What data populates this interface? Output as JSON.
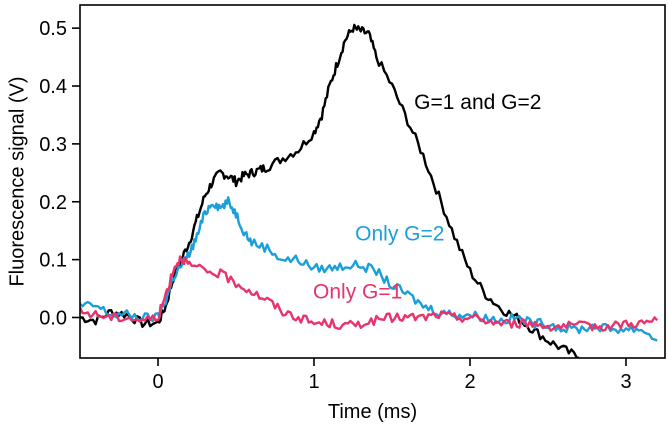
{
  "chart_data": {
    "type": "line",
    "xlabel": "Time (ms)",
    "ylabel": "Fluorescence signal (V)",
    "xlim": [
      -0.5,
      3.25
    ],
    "ylim": [
      -0.07,
      0.54
    ],
    "xticks": [
      0,
      1,
      2,
      3
    ],
    "xtick_labels": [
      "0",
      "1",
      "2",
      "3"
    ],
    "yticks": [
      0.0,
      0.1,
      0.2,
      0.3,
      0.4,
      0.5
    ],
    "ytick_labels": [
      "0.0",
      "0.1",
      "0.2",
      "0.3",
      "0.4",
      "0.5"
    ],
    "grid": false,
    "series": [
      {
        "name": "G=1 and G=2",
        "color": "#000000",
        "points": [
          [
            -0.5,
            0.0
          ],
          [
            -0.4,
            -0.005
          ],
          [
            -0.3,
            0.01
          ],
          [
            -0.2,
            0.005
          ],
          [
            -0.1,
            -0.01
          ],
          [
            0.0,
            -0.01
          ],
          [
            0.05,
            0.02
          ],
          [
            0.1,
            0.07
          ],
          [
            0.15,
            0.1
          ],
          [
            0.2,
            0.13
          ],
          [
            0.25,
            0.17
          ],
          [
            0.3,
            0.21
          ],
          [
            0.35,
            0.235
          ],
          [
            0.4,
            0.25
          ],
          [
            0.45,
            0.245
          ],
          [
            0.5,
            0.235
          ],
          [
            0.55,
            0.245
          ],
          [
            0.6,
            0.25
          ],
          [
            0.65,
            0.255
          ],
          [
            0.7,
            0.26
          ],
          [
            0.8,
            0.275
          ],
          [
            0.9,
            0.29
          ],
          [
            1.0,
            0.32
          ],
          [
            1.05,
            0.35
          ],
          [
            1.1,
            0.4
          ],
          [
            1.15,
            0.44
          ],
          [
            1.2,
            0.48
          ],
          [
            1.25,
            0.5
          ],
          [
            1.3,
            0.495
          ],
          [
            1.35,
            0.49
          ],
          [
            1.4,
            0.45
          ],
          [
            1.5,
            0.4
          ],
          [
            1.6,
            0.34
          ],
          [
            1.7,
            0.28
          ],
          [
            1.8,
            0.21
          ],
          [
            1.9,
            0.14
          ],
          [
            2.0,
            0.08
          ],
          [
            2.1,
            0.04
          ],
          [
            2.2,
            0.015
          ],
          [
            2.3,
            0.0
          ],
          [
            2.4,
            -0.02
          ],
          [
            2.5,
            -0.04
          ],
          [
            2.6,
            -0.055
          ],
          [
            2.7,
            -0.07
          ]
        ]
      },
      {
        "name": "Only G=2",
        "color": "#1a9fdb",
        "points": [
          [
            -0.5,
            0.02
          ],
          [
            -0.4,
            0.02
          ],
          [
            -0.3,
            0.005
          ],
          [
            -0.2,
            0.005
          ],
          [
            -0.1,
            0.0
          ],
          [
            0.0,
            0.0
          ],
          [
            0.05,
            0.03
          ],
          [
            0.1,
            0.07
          ],
          [
            0.15,
            0.09
          ],
          [
            0.2,
            0.11
          ],
          [
            0.25,
            0.14
          ],
          [
            0.3,
            0.18
          ],
          [
            0.35,
            0.2
          ],
          [
            0.4,
            0.19
          ],
          [
            0.45,
            0.2
          ],
          [
            0.5,
            0.18
          ],
          [
            0.55,
            0.15
          ],
          [
            0.6,
            0.13
          ],
          [
            0.7,
            0.12
          ],
          [
            0.8,
            0.1
          ],
          [
            0.9,
            0.1
          ],
          [
            1.0,
            0.085
          ],
          [
            1.1,
            0.085
          ],
          [
            1.2,
            0.09
          ],
          [
            1.3,
            0.09
          ],
          [
            1.4,
            0.08
          ],
          [
            1.5,
            0.055
          ],
          [
            1.6,
            0.04
          ],
          [
            1.7,
            0.02
          ],
          [
            1.8,
            0.01
          ],
          [
            1.9,
            0.005
          ],
          [
            2.0,
            0.005
          ],
          [
            2.1,
            0.0
          ],
          [
            2.2,
            -0.005
          ],
          [
            2.3,
            0.0
          ],
          [
            2.4,
            -0.01
          ],
          [
            2.5,
            -0.01
          ],
          [
            2.6,
            -0.02
          ],
          [
            2.7,
            -0.02
          ],
          [
            2.8,
            -0.015
          ],
          [
            2.9,
            -0.02
          ],
          [
            3.0,
            -0.02
          ],
          [
            3.1,
            -0.02
          ],
          [
            3.2,
            -0.04
          ]
        ]
      },
      {
        "name": "Only G=1",
        "color": "#e8336d",
        "points": [
          [
            -0.5,
            0.01
          ],
          [
            -0.4,
            0.005
          ],
          [
            -0.3,
            0.0
          ],
          [
            -0.2,
            0.0
          ],
          [
            -0.1,
            -0.005
          ],
          [
            0.0,
            0.0
          ],
          [
            0.05,
            0.04
          ],
          [
            0.1,
            0.085
          ],
          [
            0.15,
            0.105
          ],
          [
            0.2,
            0.09
          ],
          [
            0.3,
            0.08
          ],
          [
            0.4,
            0.075
          ],
          [
            0.5,
            0.06
          ],
          [
            0.6,
            0.045
          ],
          [
            0.7,
            0.03
          ],
          [
            0.8,
            0.01
          ],
          [
            0.9,
            0.0
          ],
          [
            1.0,
            -0.01
          ],
          [
            1.1,
            -0.01
          ],
          [
            1.2,
            -0.015
          ],
          [
            1.3,
            -0.01
          ],
          [
            1.4,
            -0.005
          ],
          [
            1.5,
            0.0
          ],
          [
            1.6,
            0.0
          ],
          [
            1.7,
            0.0
          ],
          [
            1.8,
            0.005
          ],
          [
            1.9,
            0.0
          ],
          [
            2.0,
            0.0
          ],
          [
            2.1,
            -0.005
          ],
          [
            2.2,
            -0.01
          ],
          [
            2.3,
            -0.01
          ],
          [
            2.4,
            -0.01
          ],
          [
            2.5,
            -0.015
          ],
          [
            2.6,
            -0.015
          ],
          [
            2.7,
            -0.015
          ],
          [
            2.8,
            -0.015
          ],
          [
            2.9,
            -0.015
          ],
          [
            3.0,
            -0.01
          ],
          [
            3.1,
            -0.01
          ],
          [
            3.2,
            -0.005
          ]
        ]
      }
    ],
    "annotations": [
      {
        "text": "G=1 and G=2",
        "x": 2.05,
        "y": 0.36,
        "color": "#000000"
      },
      {
        "text": "Only G=2",
        "x": 1.55,
        "y": 0.133,
        "color": "#1a9fdb"
      },
      {
        "text": "Only G=1",
        "x": 1.28,
        "y": 0.033,
        "color": "#e8336d"
      }
    ]
  }
}
